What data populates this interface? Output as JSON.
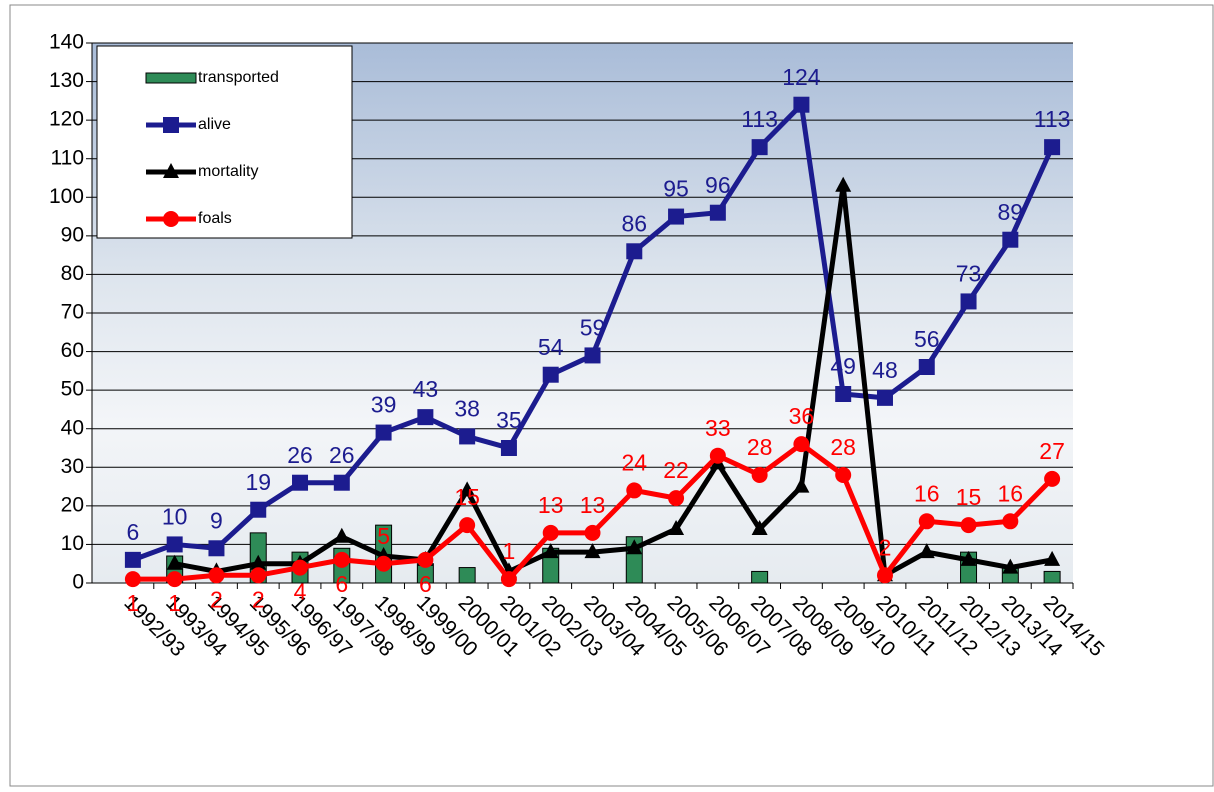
{
  "chart_data": {
    "type": "line",
    "categories": [
      "1992/93",
      "1993/94",
      "1994/95",
      "1995/96",
      "1996/97",
      "1997/98",
      "1998/99",
      "1999/00",
      "2000/01",
      "2001/02",
      "2002/03",
      "2003/04",
      "2004/05",
      "2005/06",
      "2006/07",
      "2007/08",
      "2008/09",
      "2009/10",
      "2010/11",
      "2011/12",
      "2012/13",
      "2013/14",
      "2014/15"
    ],
    "series": [
      {
        "name": "transported",
        "type": "bar",
        "color": "#2e8b57",
        "values": [
          null,
          7,
          null,
          13,
          8,
          9,
          15,
          5,
          4,
          null,
          9,
          null,
          12,
          null,
          null,
          3,
          null,
          null,
          null,
          null,
          8,
          4,
          3
        ]
      },
      {
        "name": "alive",
        "color": "#1c1c8f",
        "marker": "square",
        "labels": true,
        "values": [
          6,
          10,
          9,
          19,
          26,
          26,
          39,
          43,
          38,
          35,
          54,
          59,
          86,
          95,
          96,
          113,
          124,
          49,
          48,
          56,
          73,
          89,
          113
        ]
      },
      {
        "name": "mortality",
        "color": "#000000",
        "marker": "triangle",
        "values": [
          null,
          5,
          3,
          5,
          5,
          12,
          7,
          6,
          24,
          3,
          8,
          8,
          9,
          14,
          31,
          14,
          25,
          103,
          2,
          8,
          6,
          4,
          6
        ]
      },
      {
        "name": "foals",
        "color": "#ff0000",
        "marker": "circle",
        "labels": true,
        "values": [
          1,
          1,
          2,
          2,
          4,
          6,
          5,
          6,
          15,
          1,
          13,
          13,
          24,
          22,
          33,
          28,
          36,
          28,
          2,
          16,
          15,
          16,
          27
        ]
      }
    ],
    "ylim": [
      0,
      140
    ],
    "yticks": [
      0,
      10,
      20,
      30,
      40,
      50,
      60,
      70,
      80,
      90,
      100,
      110,
      120,
      130,
      140
    ],
    "grid": true
  }
}
